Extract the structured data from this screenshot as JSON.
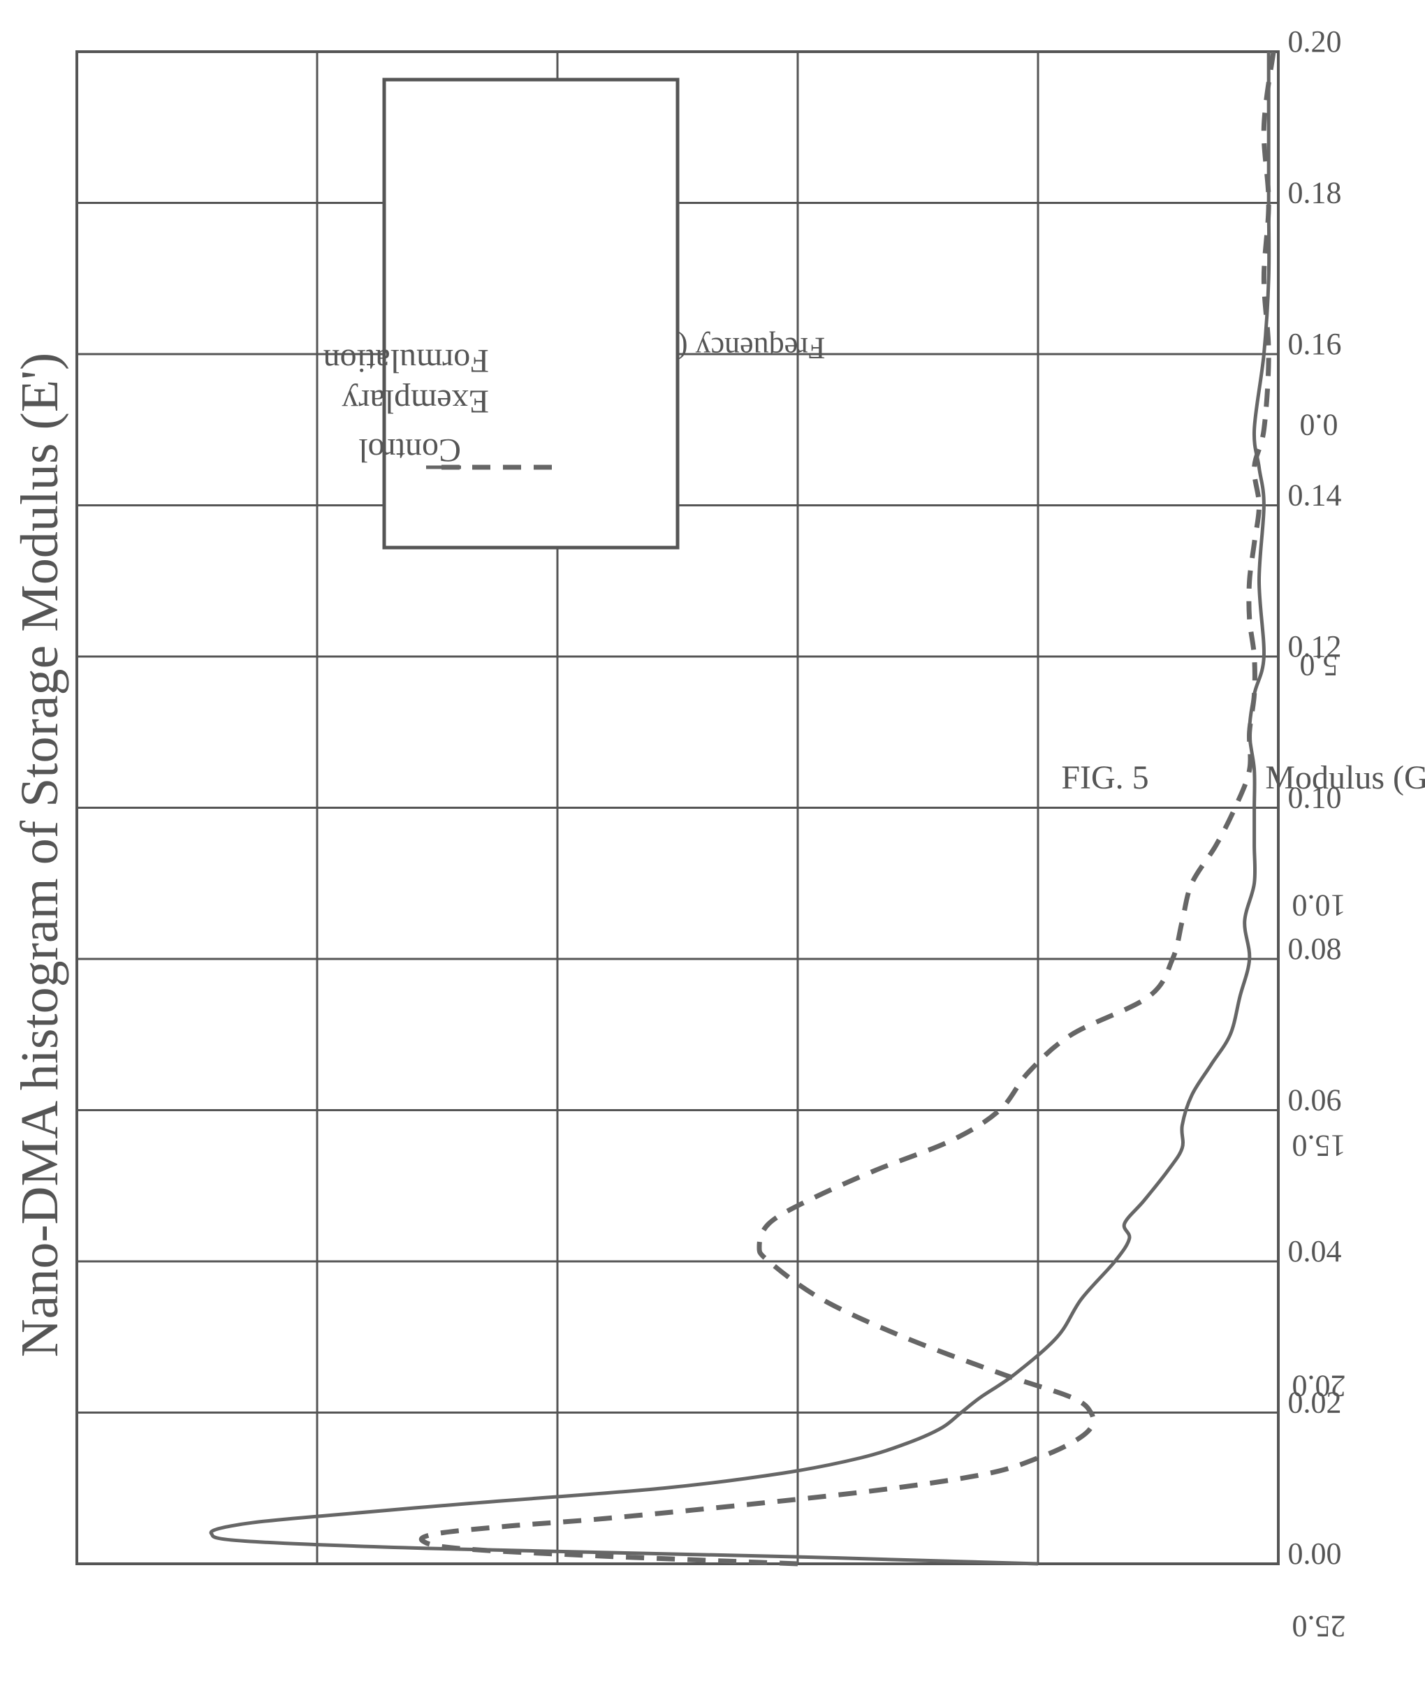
{
  "chart_data": {
    "type": "line",
    "title": "Nano-DMA histogram of Storage Modulus (E')",
    "caption": "FIG. 5",
    "xlabel": "Modulus (GPa)",
    "ylabel": "Frequency (%)",
    "xlim": [
      0.0,
      0.2
    ],
    "ylim": [
      0.0,
      25.0
    ],
    "x_ticks": [
      "0.00",
      "0.02",
      "0.04",
      "0.06",
      "0.08",
      "0.10",
      "0.12",
      "0.14",
      "0.16",
      "0.18",
      "0.20"
    ],
    "y_ticks": [
      "0.0",
      "5.0",
      "10.0",
      "15.0",
      "20.0",
      "25.0"
    ],
    "grid": true,
    "legend_position": "top-right",
    "series": [
      {
        "name": "Control",
        "style": "solid",
        "x": [
          0.0,
          0.001,
          0.002,
          0.003,
          0.004,
          0.005,
          0.006,
          0.008,
          0.01,
          0.012,
          0.014,
          0.016,
          0.018,
          0.02,
          0.022,
          0.025,
          0.03,
          0.035,
          0.04,
          0.043,
          0.045,
          0.048,
          0.052,
          0.055,
          0.058,
          0.062,
          0.066,
          0.07,
          0.075,
          0.08,
          0.085,
          0.09,
          0.095,
          0.1,
          0.105,
          0.11,
          0.115,
          0.12,
          0.13,
          0.14,
          0.145,
          0.15,
          0.16,
          0.17,
          0.18,
          0.19,
          0.2
        ],
        "values": [
          5.0,
          10.5,
          17.5,
          21.5,
          22.2,
          21.8,
          20.5,
          16.8,
          12.8,
          10.3,
          8.7,
          7.7,
          7.0,
          6.6,
          6.2,
          5.5,
          4.6,
          4.1,
          3.4,
          3.1,
          3.2,
          2.8,
          2.3,
          2.0,
          2.0,
          1.8,
          1.4,
          1.0,
          0.8,
          0.6,
          0.7,
          0.5,
          0.5,
          0.5,
          0.5,
          0.6,
          0.5,
          0.3,
          0.4,
          0.3,
          0.4,
          0.5,
          0.3,
          0.2,
          0.2,
          0.2,
          0.2
        ]
      },
      {
        "name": "Exemplary Formulation",
        "style": "dashed",
        "x": [
          0.0,
          0.001,
          0.002,
          0.003,
          0.004,
          0.005,
          0.006,
          0.008,
          0.01,
          0.012,
          0.014,
          0.016,
          0.018,
          0.02,
          0.022,
          0.025,
          0.03,
          0.035,
          0.04,
          0.042,
          0.045,
          0.048,
          0.052,
          0.056,
          0.06,
          0.065,
          0.07,
          0.075,
          0.08,
          0.085,
          0.09,
          0.095,
          0.1,
          0.105,
          0.11,
          0.115,
          0.12,
          0.125,
          0.13,
          0.135,
          0.14,
          0.145,
          0.15,
          0.16,
          0.17,
          0.18,
          0.19,
          0.2
        ],
        "values": [
          10.0,
          14.0,
          17.0,
          17.8,
          17.5,
          16.0,
          14.0,
          10.8,
          8.0,
          6.0,
          5.0,
          4.3,
          3.9,
          3.9,
          4.3,
          5.7,
          7.8,
          9.5,
          10.6,
          10.8,
          10.6,
          9.8,
          8.4,
          6.8,
          5.8,
          5.2,
          4.3,
          2.7,
          2.2,
          2.0,
          1.8,
          1.3,
          0.9,
          0.6,
          0.6,
          0.5,
          0.5,
          0.6,
          0.6,
          0.5,
          0.4,
          0.5,
          0.3,
          0.2,
          0.3,
          0.2,
          0.3,
          0.1
        ]
      }
    ]
  }
}
